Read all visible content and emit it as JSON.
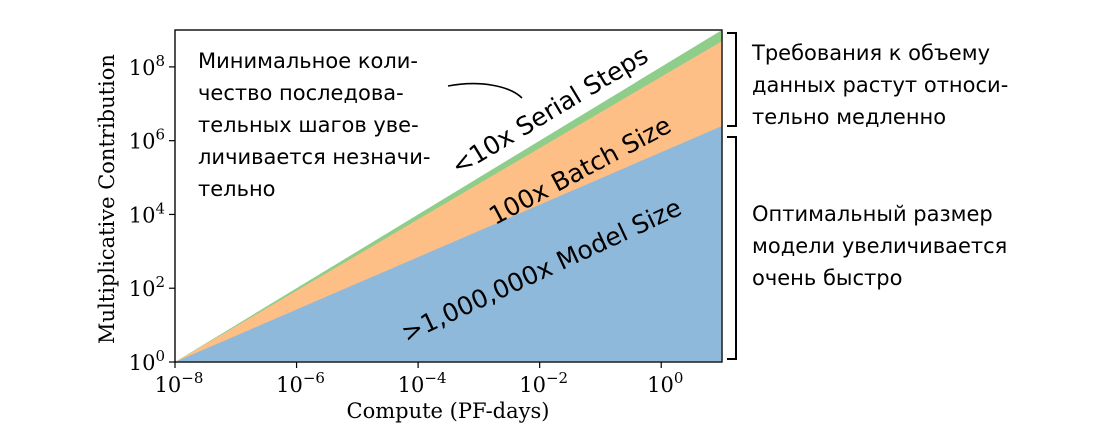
{
  "chart_data": {
    "type": "area",
    "xlabel": "Compute (PF-days)",
    "ylabel": "Multiplicative Contribution",
    "xscale": "log",
    "yscale": "log",
    "xlim": [
      1e-08,
      10
    ],
    "ylim": [
      1,
      1000000000.0
    ],
    "x_ticks": [
      {
        "base": "10",
        "exp": "−8"
      },
      {
        "base": "10",
        "exp": "−6"
      },
      {
        "base": "10",
        "exp": "−4"
      },
      {
        "base": "10",
        "exp": "−2"
      },
      {
        "base": "10",
        "exp": "0"
      }
    ],
    "y_ticks": [
      {
        "base": "10",
        "exp": "0"
      },
      {
        "base": "10",
        "exp": "2"
      },
      {
        "base": "10",
        "exp": "4"
      },
      {
        "base": "10",
        "exp": "6"
      },
      {
        "base": "10",
        "exp": "8"
      }
    ],
    "x": [
      1e-08,
      10
    ],
    "series": [
      {
        "name": ">1,000,000x Model Size",
        "values": [
          1,
          2500000.0
        ],
        "color": "#8fb9da"
      },
      {
        "name": "100x Batch Size",
        "values": [
          1,
          500000000.0
        ],
        "color": "#fdbf86"
      },
      {
        "name": "<10x Serial Steps",
        "values": [
          1,
          1000000000.0
        ],
        "color": "#8fcd8b"
      }
    ],
    "grid": false
  },
  "annotations": {
    "steps_note": [
      "Минимальное коли-",
      "чество последова-",
      "тельных шагов уве-",
      "личивается незначи-",
      "тельно"
    ],
    "data_note": [
      "Требования к объему",
      "данных растут относи-",
      "тельно медленно"
    ],
    "model_note": [
      "Оптимальный размер",
      "модели увеличивается",
      "очень быстро"
    ]
  }
}
